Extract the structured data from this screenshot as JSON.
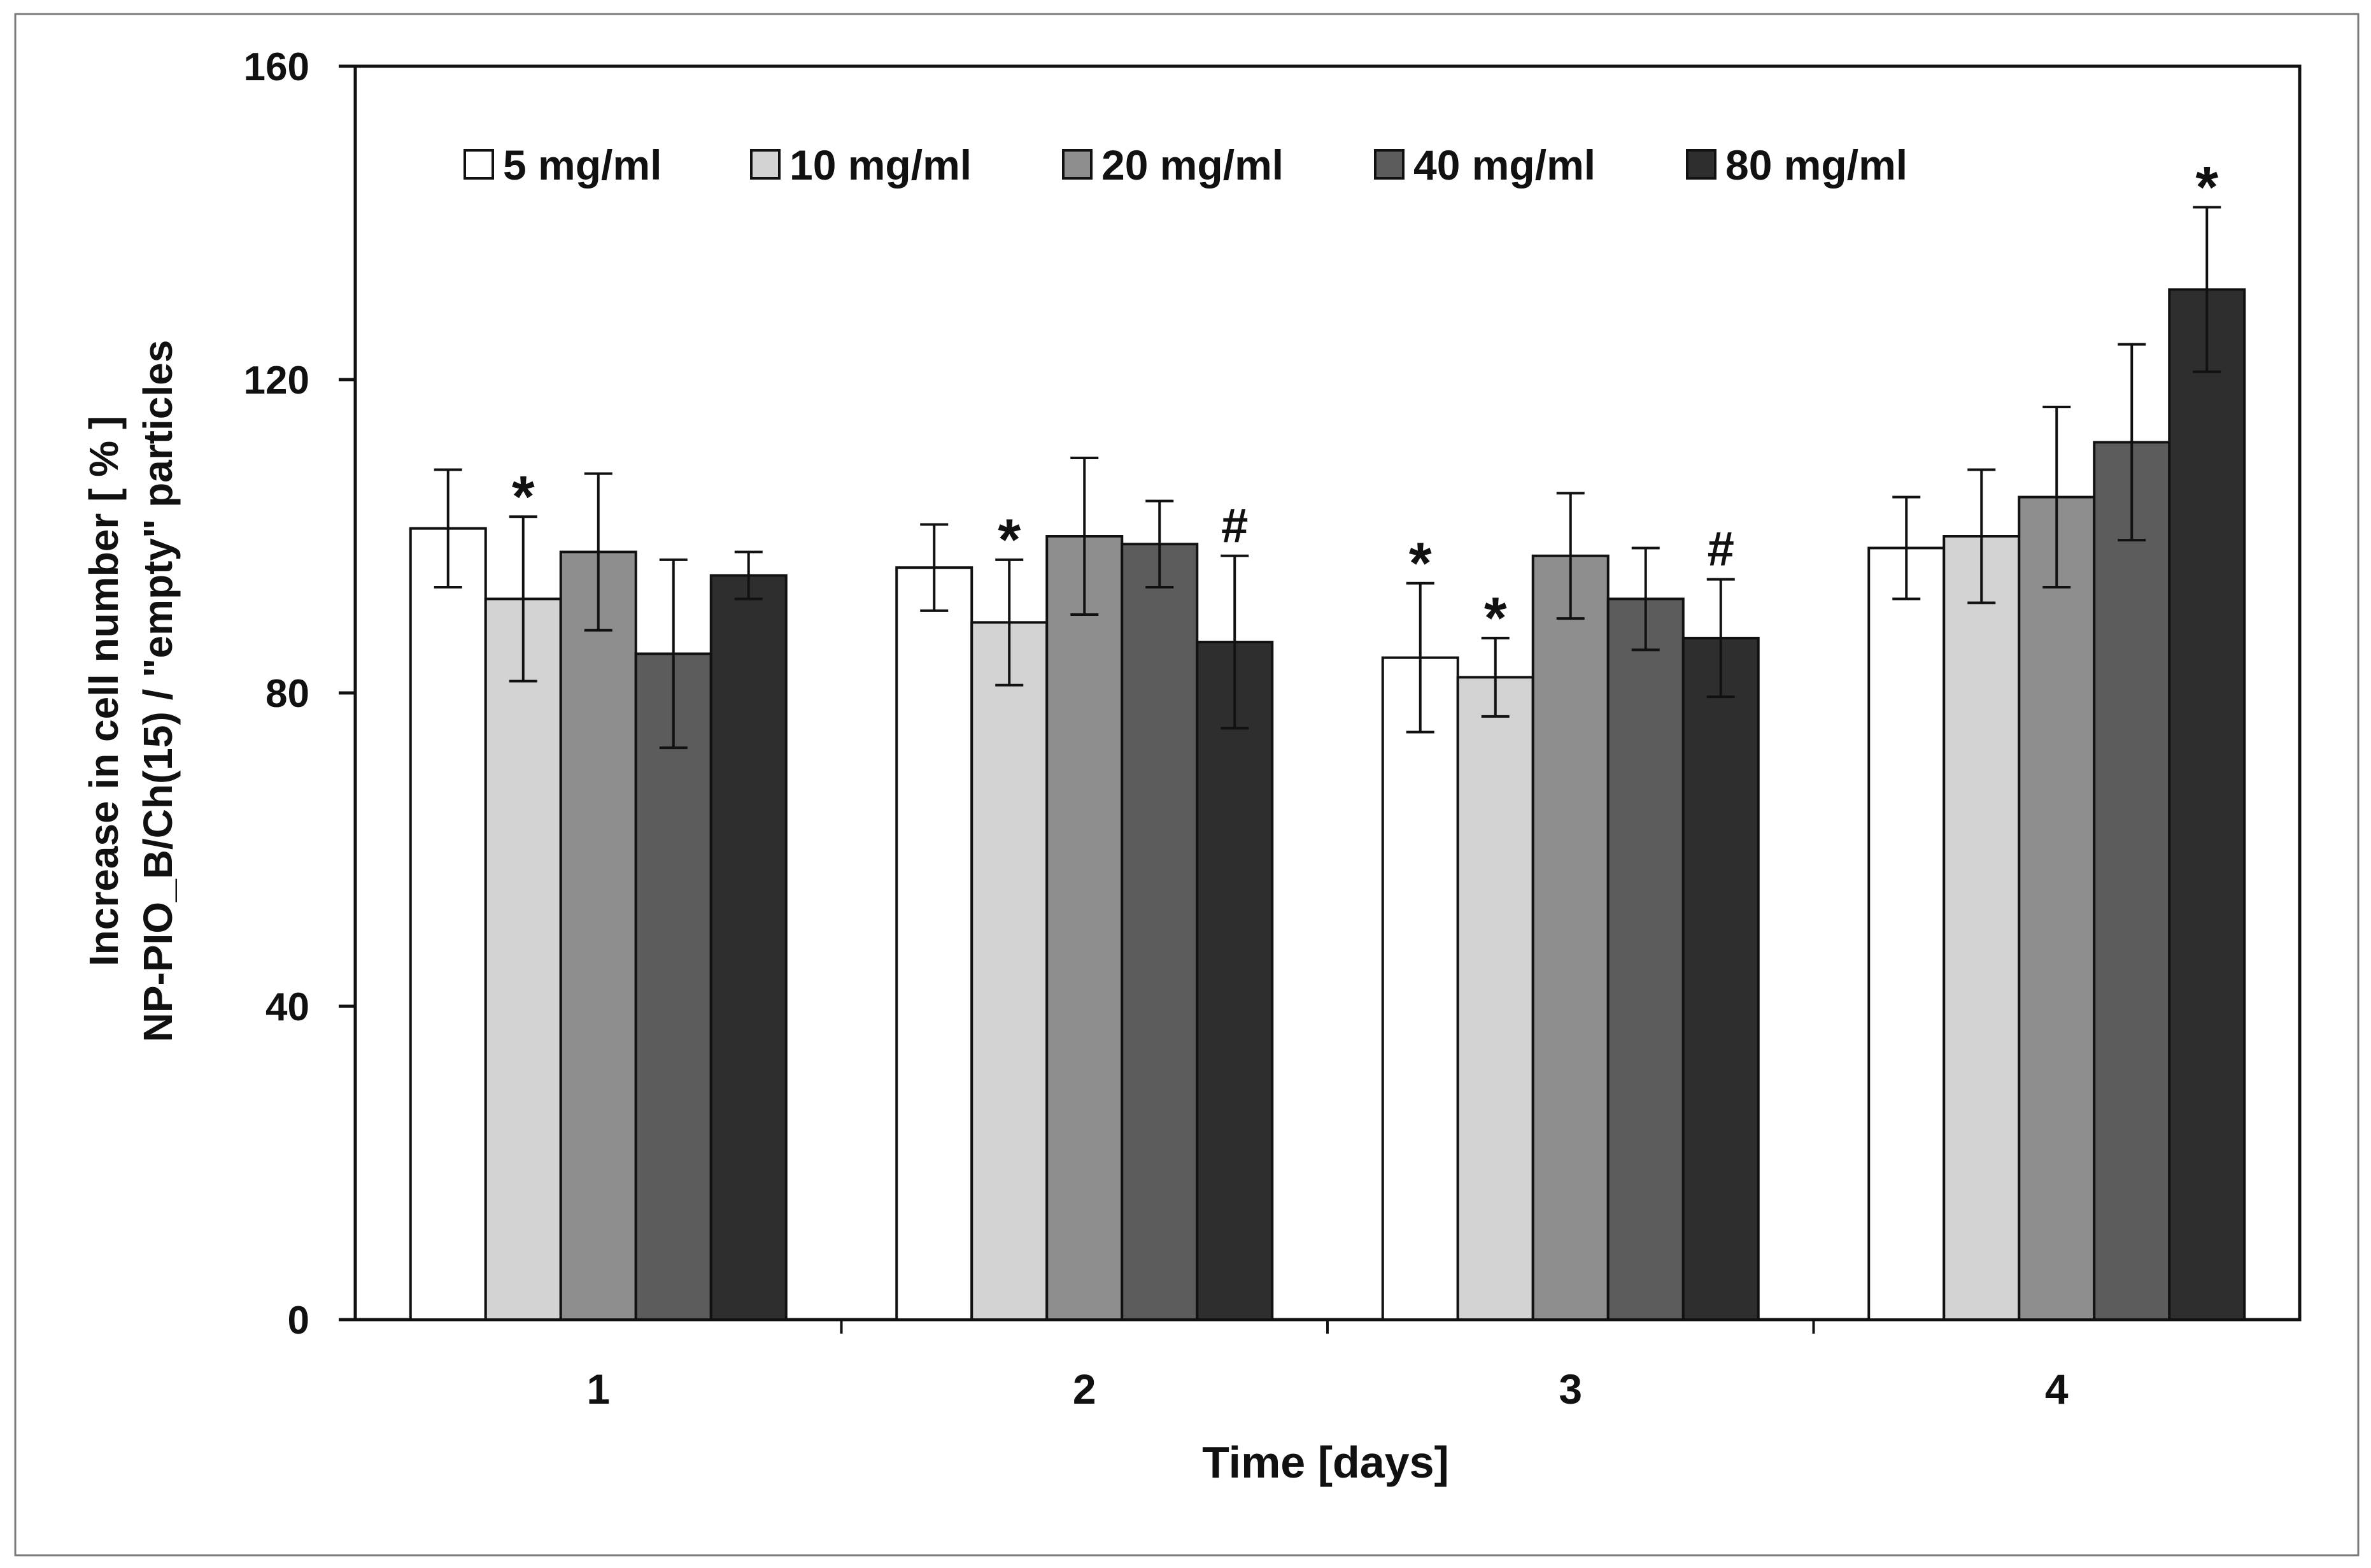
{
  "chart_data": {
    "type": "bar",
    "title": "",
    "xlabel": "Time [days]",
    "ylabel_lines": [
      "Increase in cell number [ % ]",
      "NP-PIO_B/Ch(15) / \"empty\" particles"
    ],
    "categories": [
      "1",
      "2",
      "3",
      "4"
    ],
    "ylim": [
      0,
      160
    ],
    "yticks": [
      "0",
      "40",
      "80",
      "120",
      "160"
    ],
    "ytick_values": [
      0,
      40,
      80,
      120,
      160
    ],
    "grid": false,
    "legend_position": "top",
    "series": [
      {
        "name": "5 mg/ml",
        "color": "#ffffff",
        "values": [
          101,
          96,
          84.5,
          98.5
        ],
        "errors": [
          7.5,
          5.5,
          9.5,
          6.5
        ],
        "markers": [
          "",
          "",
          "*",
          ""
        ]
      },
      {
        "name": "10 mg/ml",
        "color": "#d3d3d3",
        "values": [
          92,
          89,
          82,
          100
        ],
        "errors": [
          10.5,
          8,
          5,
          8.5
        ],
        "markers": [
          "*",
          "*",
          "*",
          ""
        ]
      },
      {
        "name": "20 mg/ml",
        "color": "#8e8e8e",
        "values": [
          98,
          100,
          97.5,
          105
        ],
        "errors": [
          10,
          10,
          8,
          11.5
        ],
        "markers": [
          "",
          "",
          "",
          ""
        ]
      },
      {
        "name": "40 mg/ml",
        "color": "#5c5c5c",
        "values": [
          85,
          99,
          92,
          112
        ],
        "errors": [
          12,
          5.5,
          6.5,
          12.5
        ],
        "markers": [
          "",
          "",
          "",
          ""
        ]
      },
      {
        "name": "80 mg/ml",
        "color": "#2e2e2e",
        "values": [
          95,
          86.5,
          87,
          131.5
        ],
        "errors": [
          3,
          11,
          7.5,
          10.5
        ],
        "markers": [
          "",
          "#",
          "#",
          "*"
        ]
      }
    ]
  }
}
